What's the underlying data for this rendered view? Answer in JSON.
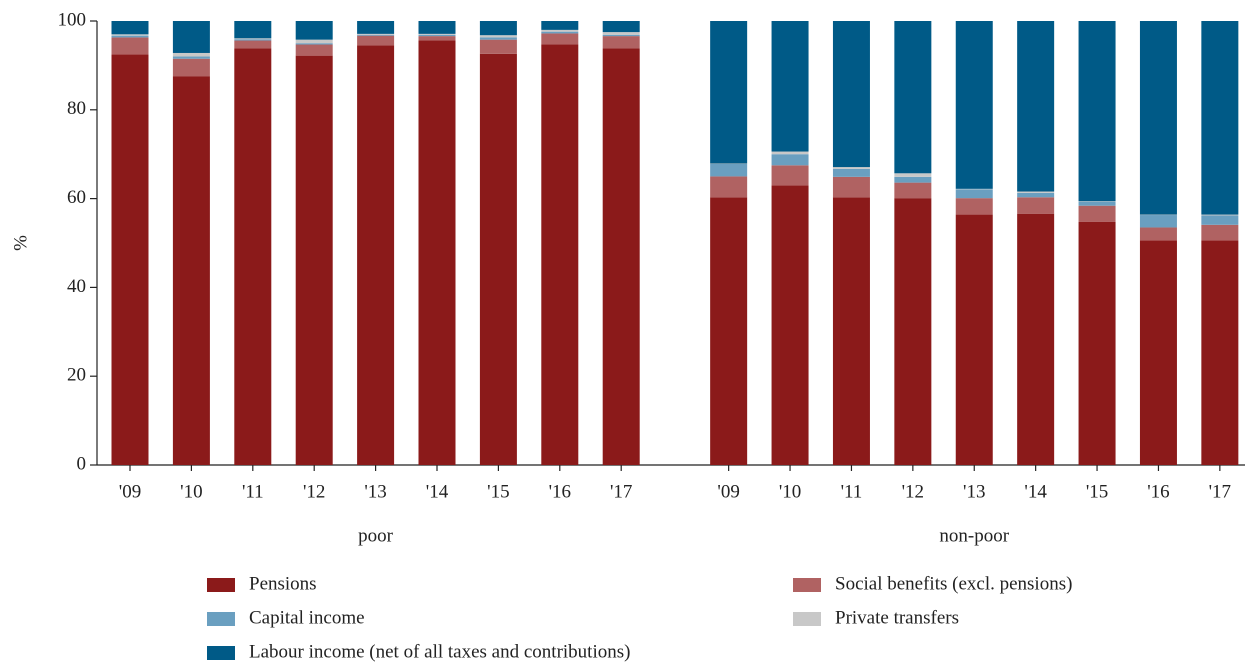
{
  "chart_data": {
    "type": "bar",
    "stacked": true,
    "ylabel": "%",
    "ylim": [
      0,
      100
    ],
    "yticks": [
      0,
      20,
      40,
      60,
      80,
      100
    ],
    "groups": [
      {
        "label": "poor",
        "categories": [
          "'09",
          "'10",
          "'11",
          "'12",
          "'13",
          "'14",
          "'15",
          "'16",
          "'17"
        ]
      },
      {
        "label": "non-poor",
        "categories": [
          "'09",
          "'10",
          "'11",
          "'12",
          "'13",
          "'14",
          "'15",
          "'16",
          "'17"
        ]
      }
    ],
    "series": [
      {
        "name": "Pensions",
        "color": "#8b1a1a",
        "values": [
          92.5,
          87.5,
          93.8,
          92.2,
          94.5,
          95.6,
          92.6,
          94.7,
          93.8,
          60.3,
          63.0,
          60.3,
          60.1,
          56.4,
          56.6,
          54.8,
          50.6,
          50.6
        ]
      },
      {
        "name": "Social benefits (excl. pensions)",
        "color": "#b06262",
        "values": [
          3.8,
          4.0,
          1.8,
          2.5,
          2.2,
          1.0,
          3.2,
          2.5,
          2.8,
          4.7,
          4.5,
          4.6,
          3.5,
          3.7,
          3.7,
          3.6,
          2.9,
          3.5
        ]
      },
      {
        "name": "Capital income",
        "color": "#6a9fc0",
        "values": [
          0.4,
          0.5,
          0.3,
          0.3,
          0.2,
          0.3,
          0.5,
          0.4,
          0.3,
          2.8,
          2.5,
          1.8,
          1.3,
          2.0,
          1.0,
          0.9,
          2.8,
          2.1
        ]
      },
      {
        "name": "Private transfers",
        "color": "#c8c8c8",
        "values": [
          0.3,
          0.8,
          0.2,
          0.8,
          0.2,
          0.2,
          0.5,
          0.4,
          0.6,
          0.1,
          0.6,
          0.4,
          0.8,
          0.1,
          0.3,
          0.1,
          0.1,
          0.2
        ]
      },
      {
        "name": "Labour income (net of all taxes and contributions)",
        "color": "#005a87",
        "values": [
          3.0,
          7.2,
          3.9,
          4.2,
          2.9,
          2.9,
          3.2,
          2.0,
          2.5,
          32.1,
          29.4,
          32.9,
          34.3,
          37.8,
          38.4,
          40.6,
          43.6,
          43.6
        ]
      }
    ]
  }
}
